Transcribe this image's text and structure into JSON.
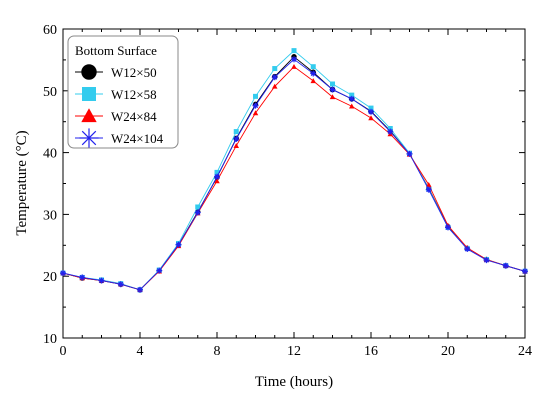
{
  "chart_data": {
    "type": "line",
    "title": "",
    "xlabel": "Time (hours)",
    "ylabel": "Temperature (°C)",
    "xlim": [
      0,
      24
    ],
    "ylim": [
      10,
      60
    ],
    "xticks": [
      0,
      4,
      8,
      12,
      16,
      20,
      24
    ],
    "yticks": [
      10,
      20,
      30,
      40,
      50,
      60
    ],
    "grid": false,
    "legend": {
      "title": "Bottom Surface",
      "placement": "top-left"
    },
    "x": [
      0,
      1,
      2,
      3,
      4,
      5,
      6,
      7,
      8,
      9,
      10,
      11,
      12,
      13,
      14,
      15,
      16,
      17,
      18,
      19,
      20,
      21,
      22,
      23,
      24
    ],
    "series": [
      {
        "name": "W12×50",
        "marker": "circle",
        "color": "#000000",
        "values": [
          20.5,
          19.7,
          19.3,
          18.7,
          17.8,
          20.9,
          25.1,
          30.4,
          36.0,
          42.3,
          47.8,
          52.3,
          55.5,
          53.0,
          50.2,
          48.7,
          46.7,
          43.5,
          39.8,
          34.2,
          28.0,
          24.5,
          22.7,
          21.7,
          20.8
        ]
      },
      {
        "name": "W12×58",
        "marker": "square",
        "color": "#33ccee",
        "values": [
          20.5,
          19.8,
          19.4,
          18.8,
          17.8,
          21.0,
          25.3,
          31.2,
          36.8,
          43.4,
          49.1,
          53.6,
          56.5,
          53.9,
          51.1,
          49.3,
          47.2,
          43.9,
          39.9,
          34.1,
          27.9,
          24.5,
          22.7,
          21.7,
          20.8
        ]
      },
      {
        "name": "W24×84",
        "marker": "triangle",
        "color": "#ff0000",
        "values": [
          20.5,
          19.7,
          19.3,
          18.7,
          17.8,
          20.8,
          24.9,
          30.2,
          35.4,
          41.1,
          46.4,
          50.7,
          53.9,
          51.6,
          49.0,
          47.5,
          45.6,
          43.0,
          39.7,
          34.8,
          28.2,
          24.6,
          22.7,
          21.7,
          20.8
        ]
      },
      {
        "name": "W24×104",
        "marker": "asterisk",
        "color": "#2222ee",
        "values": [
          20.5,
          19.8,
          19.3,
          18.7,
          17.8,
          20.9,
          25.1,
          30.3,
          36.1,
          42.2,
          47.6,
          52.2,
          55.1,
          52.8,
          50.2,
          48.7,
          46.6,
          43.4,
          39.8,
          34.0,
          27.9,
          24.4,
          22.6,
          21.7,
          20.8
        ]
      }
    ]
  }
}
